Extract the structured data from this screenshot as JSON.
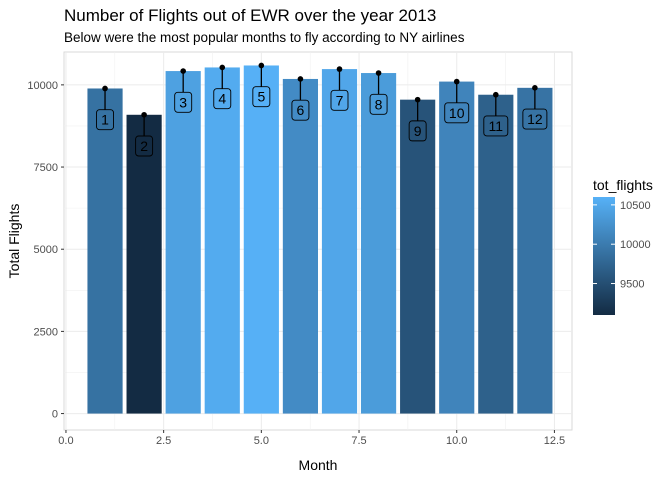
{
  "chart_data": {
    "type": "bar",
    "title": "Number of Flights out of EWR over the year 2013",
    "subtitle": "Below were the most popular months to fly according to NY airlines",
    "xlabel": "Month",
    "ylabel": "Total Flights",
    "xlim": [
      0,
      12.5
    ],
    "ylim": [
      0,
      10600
    ],
    "x_ticks": [
      "0.0",
      "2.5",
      "5.0",
      "7.5",
      "10.0",
      "12.5"
    ],
    "y_ticks": [
      "0",
      "2500",
      "5000",
      "7500",
      "10000"
    ],
    "grid": true,
    "legend": {
      "title": "tot_flights",
      "position": "right",
      "ticks": [
        "9500",
        "10000",
        "10500"
      ],
      "range": [
        9100,
        10600
      ],
      "color_low": "#132b43",
      "color_high": "#56b1f7"
    },
    "x": [
      1,
      2,
      3,
      4,
      5,
      6,
      7,
      8,
      9,
      10,
      11,
      12
    ],
    "labels": [
      "1",
      "2",
      "3",
      "4",
      "5",
      "6",
      "7",
      "8",
      "9",
      "10",
      "11",
      "12"
    ],
    "values": [
      9890,
      9090,
      10420,
      10530,
      10590,
      10180,
      10480,
      10360,
      9550,
      10100,
      9700,
      9910
    ]
  }
}
